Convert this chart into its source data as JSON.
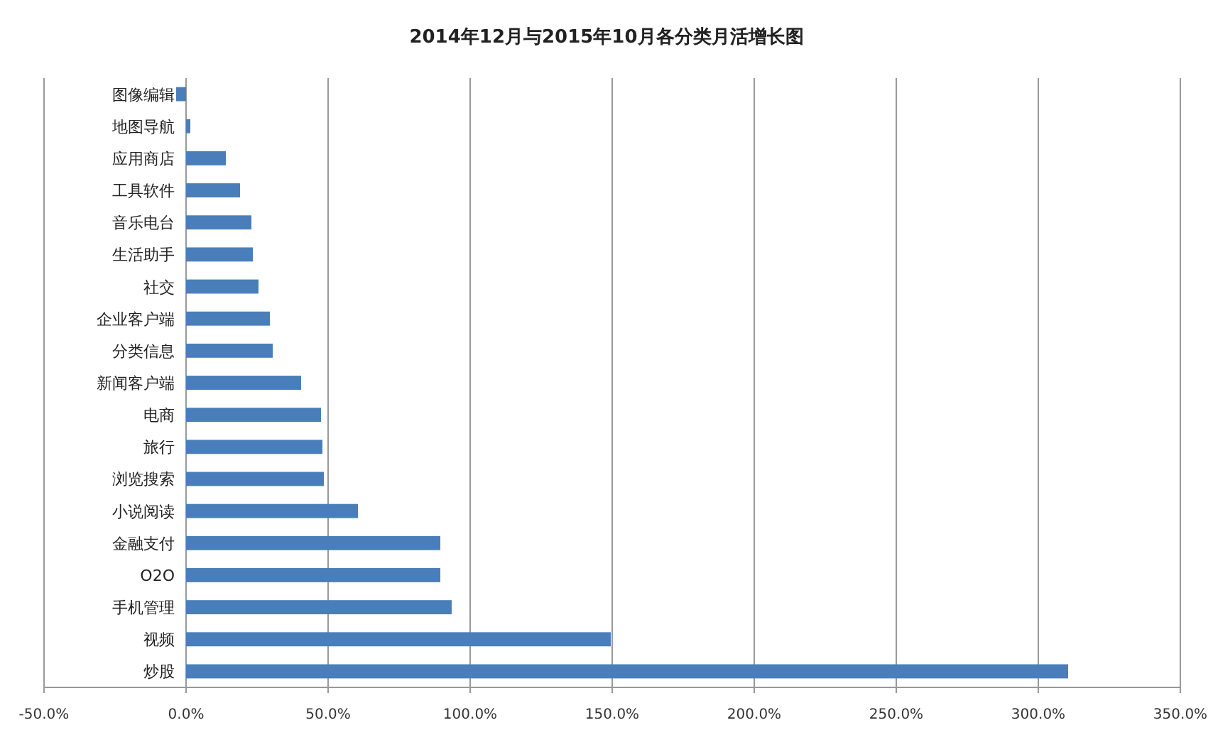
{
  "chart_data": {
    "type": "bar",
    "orientation": "horizontal",
    "title": "2014年12月与2015年10月各分类月活增长图",
    "categories": [
      "图像编辑",
      "地图导航",
      "应用商店",
      "工具软件",
      "音乐电台",
      "生活助手",
      "社交",
      "企业客户端",
      "分类信息",
      "新闻客户端",
      "电商",
      "旅行",
      "浏览搜索",
      "小说阅读",
      "金融支付",
      "O2O",
      "手机管理",
      "视频",
      "炒股"
    ],
    "values": [
      -3.5,
      1.5,
      14,
      19,
      23,
      23.5,
      25.5,
      29.5,
      30.5,
      40.5,
      47.5,
      48,
      48.5,
      60.5,
      89.5,
      89.5,
      93.5,
      149.5,
      310.5
    ],
    "color": "#4a7ebb",
    "xlim": [
      -50,
      350
    ],
    "xticks": [
      {
        "value": -50,
        "label": "-50.0%"
      },
      {
        "value": 0,
        "label": "0.0%"
      },
      {
        "value": 50,
        "label": "50.0%"
      },
      {
        "value": 100,
        "label": "100.0%"
      },
      {
        "value": 150,
        "label": "150.0%"
      },
      {
        "value": 200,
        "label": "200.0%"
      },
      {
        "value": 250,
        "label": "250.0%"
      },
      {
        "value": 300,
        "label": "300.0%"
      },
      {
        "value": 350,
        "label": "350.0%"
      }
    ],
    "grid": "x"
  }
}
